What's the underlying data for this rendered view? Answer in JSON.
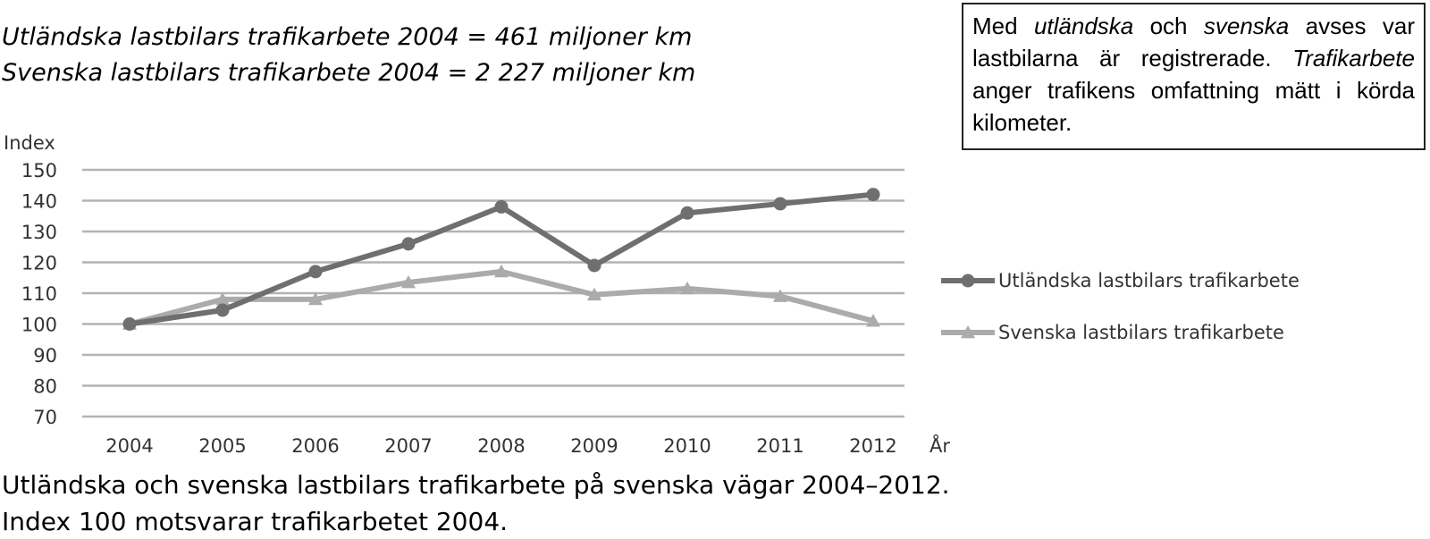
{
  "subtitles": {
    "line1": "Utländska lastbilars trafikarbete 2004 = 461 miljoner km",
    "line2": "Svenska lastbilars trafikarbete 2004 = 2 227 miljoner km"
  },
  "note": {
    "p1": "Med ",
    "em1": "utländska",
    "p2": " och ",
    "em2": "svenska",
    "p3": " avses var lastbilarna är registrerade. ",
    "em3": "Trafikarbete",
    "p4": " anger trafikens omfattning mätt i körda kilometer."
  },
  "caption": {
    "line1": "Utländska och svenska lastbilars trafikarbete på svenska vägar 2004–2012.",
    "line2": "Index 100 motsvarar trafikarbetet 2004."
  },
  "chart_data": {
    "type": "line",
    "title": "",
    "ylabel": "Index",
    "xlabel": "År",
    "ylim": [
      70,
      150
    ],
    "yticks": [
      70,
      80,
      90,
      100,
      110,
      120,
      130,
      140,
      150
    ],
    "categories": [
      "2004",
      "2005",
      "2006",
      "2007",
      "2008",
      "2009",
      "2010",
      "2011",
      "2012"
    ],
    "grid": true,
    "legend": "right",
    "series": [
      {
        "name": "Utländska lastbilars trafikarbete",
        "marker": "circle",
        "color": "#6f6f6f",
        "values": [
          100,
          104.5,
          117,
          126,
          138,
          119,
          136,
          139,
          142
        ]
      },
      {
        "name": "Svenska lastbilars trafikarbete",
        "marker": "triangle",
        "color": "#ababab",
        "values": [
          100,
          108,
          108,
          113.5,
          117,
          109.5,
          111.5,
          109,
          101
        ]
      }
    ]
  }
}
